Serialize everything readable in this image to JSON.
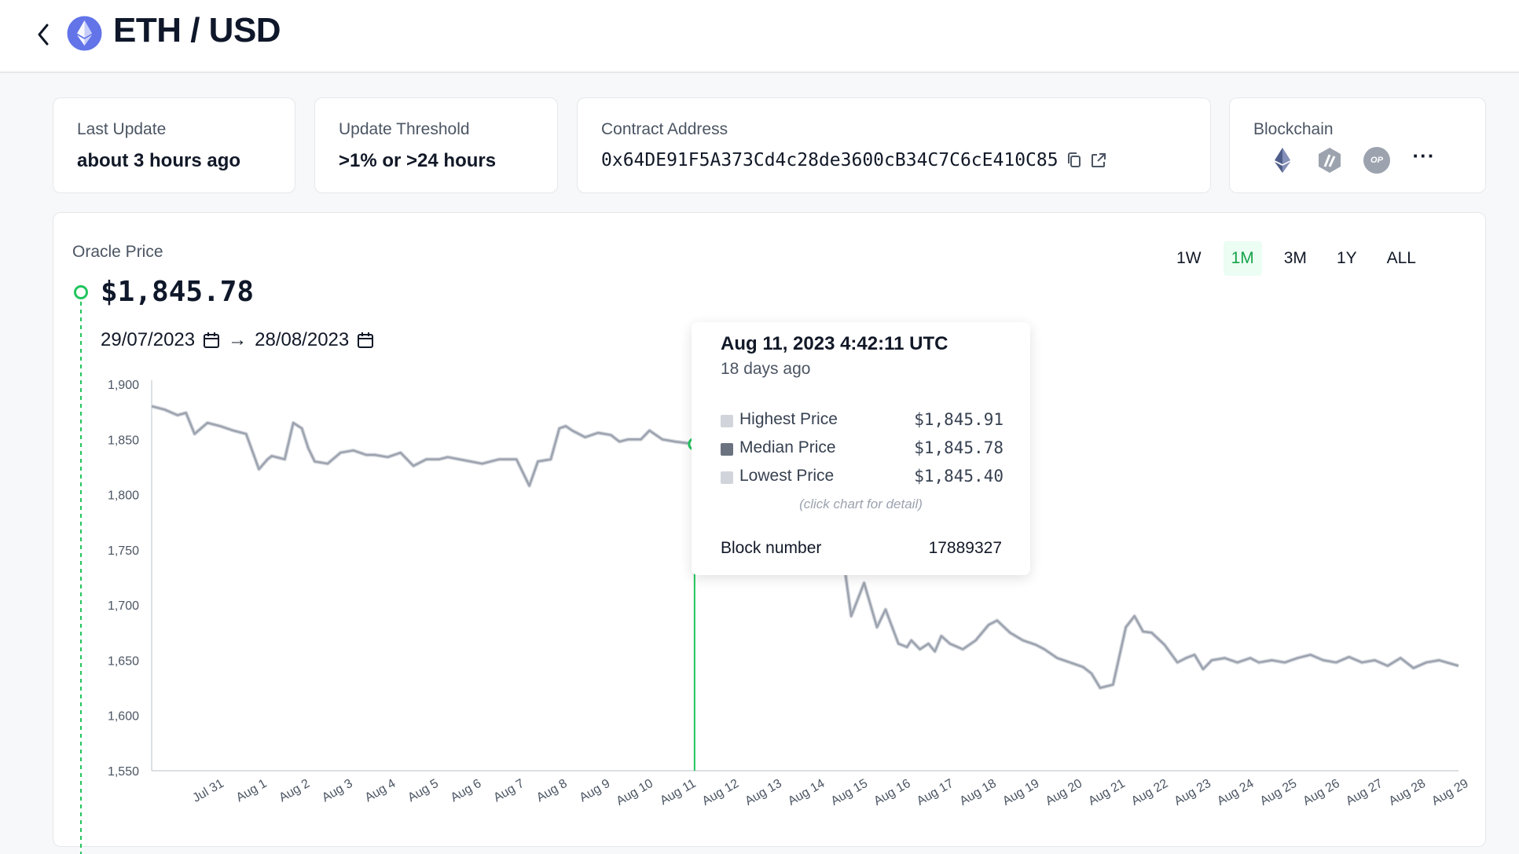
{
  "header": {
    "title": "ETH / USD"
  },
  "stats": {
    "last_update": {
      "label": "Last Update",
      "value": "about 3 hours ago"
    },
    "threshold": {
      "label": "Update Threshold",
      "value": ">1% or >24 hours"
    },
    "contract": {
      "label": "Contract Address",
      "value": "0x64DE91F5A373Cd4c28de3600cB34C7C6cE410C85"
    },
    "blockchain": {
      "label": "Blockchain",
      "icons": [
        "ethereum-icon",
        "arbitrum-icon",
        "optimism-icon",
        "more-icon"
      ],
      "op_text": "OP",
      "more_text": "···"
    }
  },
  "chart_panel": {
    "label": "Oracle Price",
    "current_price": "$1,845.78",
    "date_from": "29/07/2023",
    "arrow": "→",
    "date_to": "28/08/2023",
    "ranges": [
      "1W",
      "1M",
      "3M",
      "1Y",
      "ALL"
    ],
    "active_range": "1M"
  },
  "tooltip": {
    "date": "Aug 11, 2023 4:42:11 UTC",
    "ago": "18 days ago",
    "rows": [
      {
        "name": "Highest Price",
        "value": "$1,845.91",
        "swatch": "#d1d5db"
      },
      {
        "name": "Median Price",
        "value": "$1,845.78",
        "swatch": "#6b7280"
      },
      {
        "name": "Lowest Price",
        "value": "$1,845.40",
        "swatch": "#d1d5db"
      }
    ],
    "hint": "(click chart for detail)",
    "block_label": "Block number",
    "block_value": "17889327"
  },
  "colors": {
    "accent": "#22c55e",
    "line": "#9ca3af",
    "band": "#d1d5db"
  },
  "chart_data": {
    "type": "line",
    "y_ticks": [
      "1,900",
      "1,850",
      "1,800",
      "1,750",
      "1,700",
      "1,650",
      "1,600",
      "1,550"
    ],
    "ylim": [
      1550,
      1900
    ],
    "x_ticks": [
      "Jul 31",
      "Aug 1",
      "Aug 2",
      "Aug 3",
      "Aug 4",
      "Aug 5",
      "Aug 6",
      "Aug 7",
      "Aug 8",
      "Aug 9",
      "Aug 10",
      "Aug 11",
      "Aug 12",
      "Aug 13",
      "Aug 14",
      "Aug 15",
      "Aug 16",
      "Aug 17",
      "Aug 18",
      "Aug 19",
      "Aug 20",
      "Aug 21",
      "Aug 22",
      "Aug 23",
      "Aug 24",
      "Aug 25",
      "Aug 26",
      "Aug 27",
      "Aug 28",
      "Aug 29"
    ],
    "xlim": [
      29.3,
      59.75
    ],
    "hover_x": 41.95,
    "hover_value": 1845.78,
    "series": [
      {
        "name": "Median Price",
        "x": [
          29.3,
          29.6,
          29.9,
          30.1,
          30.3,
          30.6,
          30.9,
          31.2,
          31.5,
          31.8,
          32.0,
          32.1,
          32.4,
          32.6,
          32.8,
          32.95,
          33.1,
          33.4,
          33.7,
          34.0,
          34.3,
          34.5,
          34.8,
          35.1,
          35.4,
          35.7,
          36.0,
          36.2,
          36.6,
          37.0,
          37.4,
          37.8,
          38.1,
          38.3,
          38.6,
          38.8,
          38.95,
          39.1,
          39.4,
          39.7,
          40.0,
          40.2,
          40.4,
          40.7,
          40.9,
          41.2,
          41.5,
          41.7,
          41.95,
          42.2,
          42.4,
          42.7,
          43.0,
          43.3,
          43.6,
          43.9,
          44.2,
          44.5,
          44.8,
          45.0,
          45.3,
          45.6,
          45.9,
          46.2,
          46.4,
          46.7,
          46.9,
          47.0,
          47.2,
          47.4,
          47.55,
          47.7,
          47.9,
          48.2,
          48.5,
          48.8,
          49.0,
          49.3,
          49.6,
          49.9,
          50.1,
          50.4,
          50.7,
          51.0,
          51.2,
          51.4,
          51.7,
          52.0,
          52.2,
          52.4,
          52.6,
          52.9,
          53.2,
          53.4,
          53.6,
          53.8,
          54.0,
          54.3,
          54.6,
          54.9,
          55.1,
          55.4,
          55.7,
          56.0,
          56.3,
          56.6,
          56.9,
          57.2,
          57.5,
          57.8,
          58.1,
          58.4,
          58.7,
          59.0,
          59.3,
          59.75
        ],
        "values": [
          1880,
          1877,
          1872,
          1874,
          1855,
          1865,
          1862,
          1858,
          1855,
          1823,
          1832,
          1835,
          1832,
          1865,
          1860,
          1842,
          1830,
          1828,
          1838,
          1840,
          1836,
          1836,
          1834,
          1838,
          1826,
          1832,
          1832,
          1834,
          1831,
          1828,
          1832,
          1832,
          1808,
          1830,
          1832,
          1860,
          1862,
          1858,
          1852,
          1856,
          1854,
          1848,
          1850,
          1850,
          1858,
          1850,
          1848,
          1847,
          1845.78,
          1844,
          1843,
          1840,
          1842,
          1835,
          1838,
          1830,
          1825,
          1828,
          1822,
          1812,
          1775,
          1690,
          1720,
          1680,
          1696,
          1665,
          1662,
          1668,
          1660,
          1665,
          1658,
          1672,
          1665,
          1660,
          1668,
          1682,
          1686,
          1675,
          1668,
          1664,
          1660,
          1652,
          1648,
          1644,
          1638,
          1625,
          1628,
          1680,
          1690,
          1676,
          1675,
          1664,
          1648,
          1652,
          1655,
          1642,
          1650,
          1652,
          1648,
          1652,
          1648,
          1650,
          1648,
          1652,
          1655,
          1650,
          1648,
          1653,
          1648,
          1650,
          1645,
          1652,
          1643,
          1648,
          1650,
          1645
        ]
      }
    ]
  }
}
